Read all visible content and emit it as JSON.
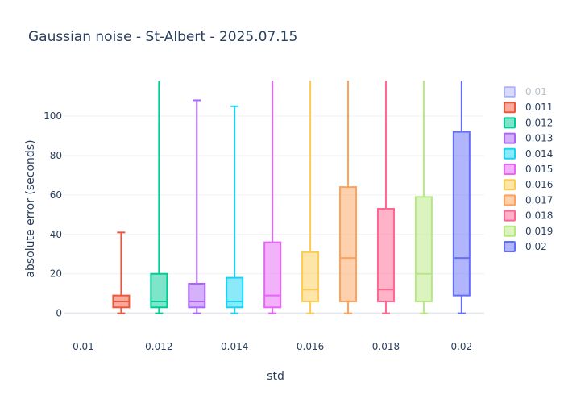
{
  "chart_data": {
    "type": "box",
    "title": "Gaussian noise - St-Albert - 2025.07.15",
    "xlabel": "std",
    "ylabel": "absolute error (seconds)",
    "ylim": [
      -12,
      118
    ],
    "yticks": [
      0,
      20,
      40,
      60,
      80,
      100
    ],
    "xticks": [
      "0.01",
      "0.012",
      "0.014",
      "0.016",
      "0.018",
      "0.02"
    ],
    "grid": true,
    "legend_position": "top-right",
    "series": [
      {
        "name": "0.01",
        "x": 0.01,
        "color": "#636efa",
        "visible": false
      },
      {
        "name": "0.011",
        "x": 0.011,
        "color": "#ef553b",
        "min": 0,
        "q1": 3,
        "median": 6,
        "q3": 9,
        "max": 41
      },
      {
        "name": "0.012",
        "x": 0.012,
        "color": "#00cc96",
        "min": 0,
        "q1": 3,
        "median": 6,
        "q3": 20,
        "max": 118
      },
      {
        "name": "0.013",
        "x": 0.013,
        "color": "#ab63fa",
        "min": 0,
        "q1": 3,
        "median": 6,
        "q3": 15,
        "max": 108
      },
      {
        "name": "0.014",
        "x": 0.014,
        "color": "#19d3f3",
        "min": 0,
        "q1": 3,
        "median": 6,
        "q3": 18,
        "max": 105
      },
      {
        "name": "0.015",
        "x": 0.015,
        "color": "#e763fa",
        "min": 0,
        "q1": 3,
        "median": 9,
        "q3": 36,
        "max": 118
      },
      {
        "name": "0.016",
        "x": 0.016,
        "color": "#fecb52",
        "min": 0,
        "q1": 6,
        "median": 12,
        "q3": 31,
        "max": 118
      },
      {
        "name": "0.017",
        "x": 0.017,
        "color": "#ffa15a",
        "min": 0,
        "q1": 6,
        "median": 28,
        "q3": 64,
        "max": 118
      },
      {
        "name": "0.018",
        "x": 0.018,
        "color": "#ff6692",
        "min": 0,
        "q1": 6,
        "median": 12,
        "q3": 53,
        "max": 118
      },
      {
        "name": "0.019",
        "x": 0.019,
        "color": "#b6e880",
        "min": 0,
        "q1": 6,
        "median": 20,
        "q3": 59,
        "max": 118
      },
      {
        "name": "0.02",
        "x": 0.02,
        "color": "#636efa",
        "min": 0,
        "q1": 9,
        "median": 28,
        "q3": 92,
        "max": 118
      }
    ]
  }
}
